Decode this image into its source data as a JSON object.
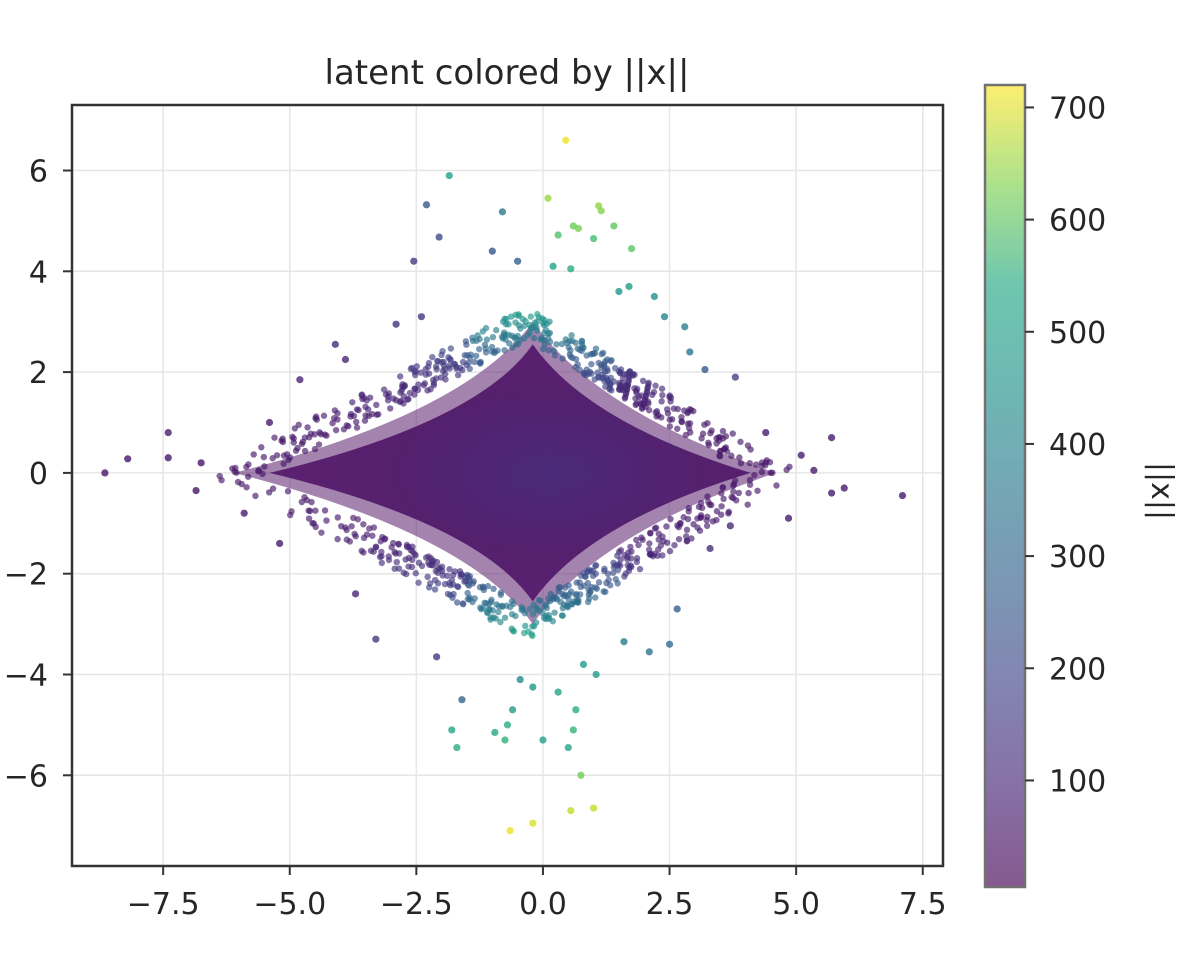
{
  "chart_data": {
    "type": "scatter",
    "title": "latent colored by ||x||",
    "xlabel": "",
    "ylabel": "",
    "xlim": [
      -9.3,
      7.9
    ],
    "ylim": [
      -7.8,
      7.3
    ],
    "x_ticks": [
      -7.5,
      -5.0,
      -2.5,
      0.0,
      2.5,
      5.0,
      7.5
    ],
    "x_tick_labels": [
      "−7.5",
      "−5.0",
      "−2.5",
      "0.0",
      "2.5",
      "5.0",
      "7.5"
    ],
    "y_ticks": [
      -6,
      -4,
      -2,
      0,
      2,
      4,
      6
    ],
    "y_tick_labels": [
      "−6",
      "−4",
      "−2",
      "0",
      "2",
      "4",
      "6"
    ],
    "grid": true,
    "colormap": "viridis",
    "point_alpha": 0.65,
    "colorbar": {
      "label": "||x||",
      "range": [
        5,
        720
      ],
      "ticks": [
        100,
        200,
        300,
        400,
        500,
        600,
        700
      ],
      "tick_labels": [
        "100",
        "200",
        "300",
        "400",
        "500",
        "600",
        "700"
      ]
    },
    "dense_region": {
      "description_shape": "diamond",
      "center": [
        -0.3,
        0
      ],
      "x_extent": [
        -6.1,
        4.6
      ],
      "y_extent": [
        -3.0,
        3.0
      ],
      "color_value": 60
    },
    "points": [
      {
        "x": 0.45,
        "y": 6.6,
        "c": 700
      },
      {
        "x": -1.85,
        "y": 5.9,
        "c": 410
      },
      {
        "x": 0.1,
        "y": 5.45,
        "c": 610
      },
      {
        "x": -2.3,
        "y": 5.32,
        "c": 200
      },
      {
        "x": -0.8,
        "y": 5.18,
        "c": 300
      },
      {
        "x": 1.1,
        "y": 5.3,
        "c": 600
      },
      {
        "x": 1.15,
        "y": 5.2,
        "c": 590
      },
      {
        "x": 0.6,
        "y": 4.9,
        "c": 560
      },
      {
        "x": 0.7,
        "y": 4.85,
        "c": 570
      },
      {
        "x": 1.4,
        "y": 4.9,
        "c": 540
      },
      {
        "x": -2.05,
        "y": 4.68,
        "c": 170
      },
      {
        "x": 0.3,
        "y": 4.72,
        "c": 520
      },
      {
        "x": 1.0,
        "y": 4.65,
        "c": 500
      },
      {
        "x": 1.75,
        "y": 4.45,
        "c": 530
      },
      {
        "x": -2.55,
        "y": 4.2,
        "c": 130
      },
      {
        "x": -1.0,
        "y": 4.4,
        "c": 190
      },
      {
        "x": -0.5,
        "y": 4.2,
        "c": 220
      },
      {
        "x": 0.2,
        "y": 4.1,
        "c": 420
      },
      {
        "x": 0.55,
        "y": 4.05,
        "c": 440
      },
      {
        "x": 1.5,
        "y": 3.6,
        "c": 380
      },
      {
        "x": 2.2,
        "y": 3.5,
        "c": 360
      },
      {
        "x": 1.7,
        "y": 3.7,
        "c": 400
      },
      {
        "x": 2.4,
        "y": 3.1,
        "c": 330
      },
      {
        "x": 2.8,
        "y": 2.9,
        "c": 310
      },
      {
        "x": -2.4,
        "y": 3.1,
        "c": 120
      },
      {
        "x": -2.9,
        "y": 2.95,
        "c": 110
      },
      {
        "x": 2.9,
        "y": 2.4,
        "c": 280
      },
      {
        "x": 3.2,
        "y": 2.05,
        "c": 200
      },
      {
        "x": 3.8,
        "y": 1.9,
        "c": 150
      },
      {
        "x": -4.1,
        "y": 2.55,
        "c": 90
      },
      {
        "x": -4.8,
        "y": 1.85,
        "c": 80
      },
      {
        "x": -7.4,
        "y": 0.8,
        "c": 60
      },
      {
        "x": -8.2,
        "y": 0.28,
        "c": 50
      },
      {
        "x": -8.65,
        "y": 0.0,
        "c": 50
      },
      {
        "x": -7.4,
        "y": 0.3,
        "c": 50
      },
      {
        "x": -6.75,
        "y": 0.2,
        "c": 50
      },
      {
        "x": -6.85,
        "y": -0.35,
        "c": 50
      },
      {
        "x": 7.1,
        "y": -0.45,
        "c": 60
      },
      {
        "x": 5.95,
        "y": -0.3,
        "c": 60
      },
      {
        "x": 5.7,
        "y": -0.4,
        "c": 60
      },
      {
        "x": 5.7,
        "y": 0.7,
        "c": 60
      },
      {
        "x": 5.35,
        "y": 0.05,
        "c": 60
      },
      {
        "x": 5.1,
        "y": 0.35,
        "c": 60
      },
      {
        "x": 4.85,
        "y": -0.9,
        "c": 60
      },
      {
        "x": 4.4,
        "y": 0.8,
        "c": 60
      },
      {
        "x": -5.2,
        "y": -1.4,
        "c": 60
      },
      {
        "x": -3.3,
        "y": -3.3,
        "c": 120
      },
      {
        "x": -2.1,
        "y": -3.65,
        "c": 130
      },
      {
        "x": -1.6,
        "y": -4.5,
        "c": 230
      },
      {
        "x": -1.8,
        "y": -5.1,
        "c": 430
      },
      {
        "x": -1.7,
        "y": -5.45,
        "c": 450
      },
      {
        "x": -0.95,
        "y": -5.15,
        "c": 430
      },
      {
        "x": -0.75,
        "y": -5.3,
        "c": 460
      },
      {
        "x": -0.7,
        "y": -5.0,
        "c": 450
      },
      {
        "x": -0.6,
        "y": -4.7,
        "c": 400
      },
      {
        "x": -0.2,
        "y": -4.25,
        "c": 380
      },
      {
        "x": -0.45,
        "y": -4.1,
        "c": 340
      },
      {
        "x": 0.0,
        "y": -5.3,
        "c": 410
      },
      {
        "x": 0.5,
        "y": -5.45,
        "c": 430
      },
      {
        "x": 0.6,
        "y": -5.1,
        "c": 470
      },
      {
        "x": 0.65,
        "y": -4.7,
        "c": 450
      },
      {
        "x": 0.3,
        "y": -4.35,
        "c": 420
      },
      {
        "x": 0.8,
        "y": -3.8,
        "c": 400
      },
      {
        "x": 1.05,
        "y": -4.0,
        "c": 390
      },
      {
        "x": 1.6,
        "y": -3.35,
        "c": 300
      },
      {
        "x": 2.1,
        "y": -3.55,
        "c": 280
      },
      {
        "x": 2.5,
        "y": -3.4,
        "c": 260
      },
      {
        "x": 2.65,
        "y": -2.7,
        "c": 220
      },
      {
        "x": 0.75,
        "y": -6.0,
        "c": 560
      },
      {
        "x": 0.55,
        "y": -6.7,
        "c": 650
      },
      {
        "x": 1.0,
        "y": -6.65,
        "c": 650
      },
      {
        "x": -0.2,
        "y": -6.95,
        "c": 680
      },
      {
        "x": -0.65,
        "y": -7.1,
        "c": 700
      },
      {
        "x": 3.3,
        "y": -1.5,
        "c": 100
      },
      {
        "x": 3.7,
        "y": -1.05,
        "c": 90
      },
      {
        "x": -5.4,
        "y": 1.0,
        "c": 60
      },
      {
        "x": -5.9,
        "y": -0.8,
        "c": 60
      },
      {
        "x": -3.7,
        "y": -2.4,
        "c": 80
      },
      {
        "x": -3.9,
        "y": 2.25,
        "c": 80
      }
    ]
  }
}
